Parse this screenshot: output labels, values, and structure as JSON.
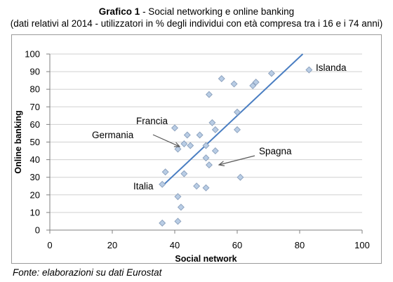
{
  "title": {
    "bold": "Grafico 1",
    "rest": " - Social networking e online banking"
  },
  "subtitle": "(dati relativi al 2014 - utilizzatori in % degli individui con età compresa tra i 16 e i 74 anni)",
  "source": "Fonte: elaborazioni su dati Eurostat",
  "colors": {
    "marker_fill": "#b9cde5",
    "marker_stroke": "#8ea3bf",
    "trend": "#4a7ec2",
    "grid": "#d0d0d0",
    "axis": "#808080"
  },
  "chart_data": {
    "type": "scatter",
    "xlabel": "Social network",
    "ylabel": "Online banking",
    "xlim": [
      0,
      100
    ],
    "ylim": [
      0,
      100
    ],
    "xticks": [
      0,
      20,
      40,
      60,
      80,
      100
    ],
    "yticks": [
      0,
      10,
      20,
      30,
      40,
      50,
      60,
      70,
      80,
      90,
      100
    ],
    "grid": "horizontal",
    "points": [
      {
        "x": 36,
        "y": 4
      },
      {
        "x": 41,
        "y": 5
      },
      {
        "x": 42,
        "y": 13
      },
      {
        "x": 41,
        "y": 19
      },
      {
        "x": 47,
        "y": 25
      },
      {
        "x": 50,
        "y": 24
      },
      {
        "x": 36,
        "y": 26
      },
      {
        "x": 37,
        "y": 33
      },
      {
        "x": 43,
        "y": 32
      },
      {
        "x": 61,
        "y": 30
      },
      {
        "x": 51,
        "y": 37
      },
      {
        "x": 50,
        "y": 41
      },
      {
        "x": 53,
        "y": 45
      },
      {
        "x": 41,
        "y": 46
      },
      {
        "x": 43,
        "y": 49
      },
      {
        "x": 45,
        "y": 48
      },
      {
        "x": 44,
        "y": 54
      },
      {
        "x": 48,
        "y": 54
      },
      {
        "x": 40,
        "y": 58
      },
      {
        "x": 50,
        "y": 48
      },
      {
        "x": 52,
        "y": 61
      },
      {
        "x": 53,
        "y": 57
      },
      {
        "x": 60,
        "y": 57
      },
      {
        "x": 60,
        "y": 67
      },
      {
        "x": 51,
        "y": 77
      },
      {
        "x": 55,
        "y": 86
      },
      {
        "x": 59,
        "y": 83
      },
      {
        "x": 65,
        "y": 82
      },
      {
        "x": 66,
        "y": 84
      },
      {
        "x": 71,
        "y": 89
      },
      {
        "x": 83,
        "y": 91
      }
    ],
    "trendline": {
      "x": [
        36,
        81
      ],
      "y": [
        25,
        100
      ]
    },
    "annotations": [
      {
        "text": "Islanda"
      },
      {
        "text": "Francia"
      },
      {
        "text": "Germania"
      },
      {
        "text": "Spagna"
      },
      {
        "text": "Italia"
      }
    ]
  }
}
